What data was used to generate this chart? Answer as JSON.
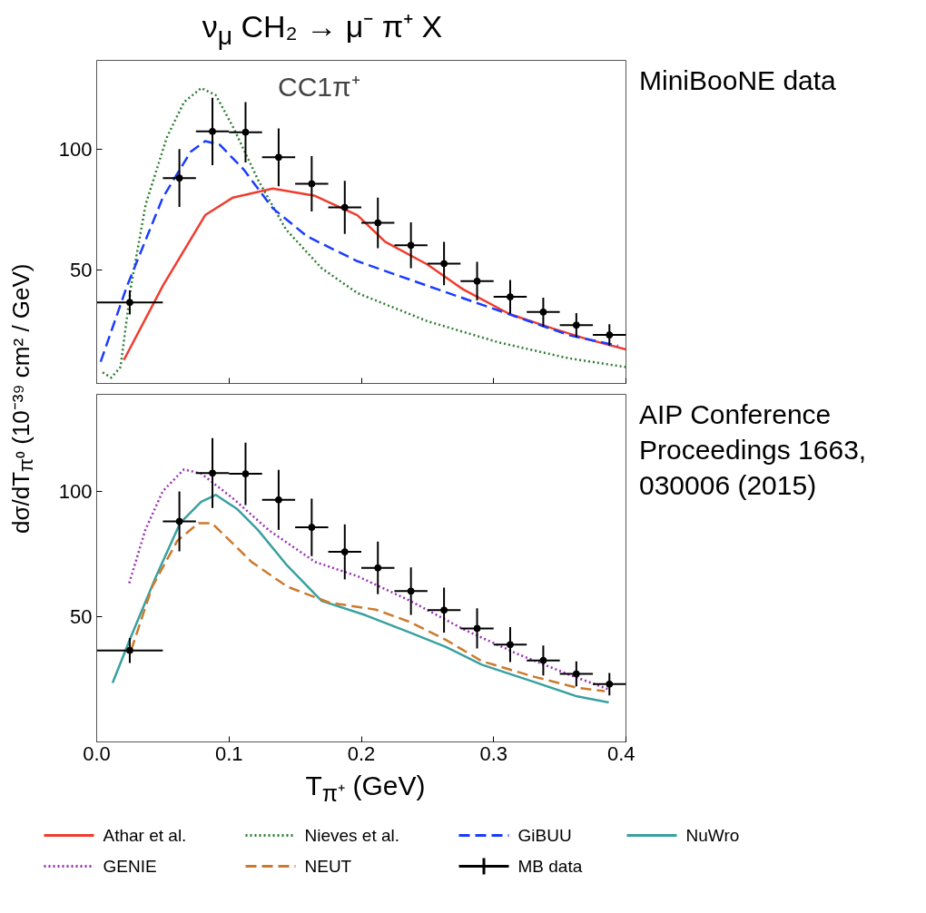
{
  "chart_data": [
    {
      "type": "line",
      "title": "ν$_{μ}$ CH₂ → μ⁻ π⁺ X",
      "subtitle": "CC1π⁺",
      "ylabel": "dσ/dT$_{π⁰}$ (10⁻³⁹ cm² / GeV)",
      "annotations": [
        "MiniBooNE data"
      ],
      "xlim": [
        0,
        0.4
      ],
      "xticks": [
        0.0,
        0.1,
        0.2,
        0.3,
        0.4
      ],
      "ylim": [
        3,
        137
      ],
      "yticks": [
        50,
        100
      ],
      "tick_labels": "y",
      "grid": false,
      "legend": "bottom",
      "series": [
        {
          "name": "Athar et al.",
          "color": "#f03c2e",
          "line_style": "solid",
          "x": [
            0.0205,
            0.05,
            0.082,
            0.103,
            0.133,
            0.165,
            0.197,
            0.218,
            0.25,
            0.277,
            0.312,
            0.344,
            0.37,
            0.4
          ],
          "values": [
            12.7,
            43.5,
            72.8,
            80.1,
            83.8,
            80.8,
            72.8,
            61.8,
            52.3,
            42,
            31.8,
            25.9,
            21.5,
            17.1
          ]
        },
        {
          "name": "Nieves et al.",
          "color": "#2e7d32",
          "line_style": "dotted",
          "x": [
            0.0045,
            0.011,
            0.018,
            0.026,
            0.037,
            0.053,
            0.066,
            0.079,
            0.09,
            0.103,
            0.122,
            0.143,
            0.17,
            0.197,
            0.25,
            0.304,
            0.357,
            0.4
          ],
          "values": [
            7.6,
            5.4,
            9.8,
            43.5,
            77.2,
            105,
            119.7,
            125.5,
            122.6,
            109.4,
            87.4,
            66.9,
            50.8,
            40.5,
            28.8,
            20,
            13.4,
            9.8
          ]
        },
        {
          "name": "GiBUU",
          "color": "#1a3cff",
          "line_style": "dashed",
          "x": [
            0.003,
            0.023,
            0.05,
            0.071,
            0.082,
            0.093,
            0.111,
            0.133,
            0.159,
            0.197,
            0.25,
            0.304,
            0.357,
            0.394
          ],
          "values": [
            12,
            43.5,
            80.1,
            99.1,
            103.5,
            102,
            91.8,
            75.7,
            64,
            53.7,
            43.5,
            33.2,
            23,
            18.6
          ]
        },
        {
          "type": "scatter",
          "marker": "circle",
          "color": "#000000",
          "x": [
            0.025,
            0.0625,
            0.0875,
            0.1125,
            0.1375,
            0.1625,
            0.1875,
            0.2125,
            0.2375,
            0.2625,
            0.2875,
            0.3125,
            0.3375,
            0.3625,
            0.3875
          ],
          "values": [
            36.6,
            88.2,
            107.5,
            107.2,
            96.8,
            85.8,
            76.0,
            69.6,
            60.3,
            52.7,
            45.4,
            38.9,
            32.6,
            27.2,
            23.1
          ],
          "errors": [
            5,
            12,
            14,
            12.5,
            12,
            11.5,
            11,
            10.5,
            9.5,
            9,
            8,
            7,
            6,
            5,
            4.5
          ],
          "xerrors": [
            0.025,
            0.0125,
            0.0125,
            0.0125,
            0.0125,
            0.0125,
            0.0125,
            0.0125,
            0.0125,
            0.0125,
            0.0125,
            0.0125,
            0.0125,
            0.0125,
            0.0125
          ]
        }
      ]
    },
    {
      "type": "line",
      "xlabel": "T$_{π⁺}$ (GeV)",
      "annotations": [
        "AIP Conference Proceedings 1663, 030006 (2015)"
      ],
      "xlim": [
        0,
        0.4
      ],
      "xticks": [
        {
          "value": 0,
          "label": "0.0"
        },
        0.1,
        0.2,
        0.3,
        0.4
      ],
      "ylim": [
        0,
        139
      ],
      "yticks": [
        50,
        100
      ],
      "grid": false,
      "legend": "bottom",
      "series": [
        {
          "name": "NuWro",
          "color": "#3aa0a0",
          "line_style": "solid",
          "x": [
            0.012,
            0.026,
            0.045,
            0.063,
            0.079,
            0.09,
            0.106,
            0.122,
            0.144,
            0.17,
            0.203,
            0.237,
            0.264,
            0.291,
            0.331,
            0.363,
            0.387
          ],
          "values": [
            23.6,
            42.2,
            66.3,
            87.5,
            96,
            98.8,
            93.2,
            84.7,
            70.5,
            56.4,
            50.7,
            43.7,
            38,
            30.9,
            23.9,
            18.2,
            15.8
          ]
        },
        {
          "name": "GENIE",
          "color": "#9a2fb5",
          "line_style": "dotted",
          "x": [
            0.0246,
            0.0367,
            0.05,
            0.066,
            0.079,
            0.103,
            0.13,
            0.165,
            0.197,
            0.237,
            0.277,
            0.318,
            0.358,
            0.387
          ],
          "values": [
            63.5,
            84.7,
            100.3,
            109,
            107.3,
            97.4,
            84.7,
            72,
            66.3,
            56.4,
            45.1,
            35.2,
            26.7,
            21.0
          ]
        },
        {
          "name": "NEUT",
          "color": "#cc7a2e",
          "line_style": "dashed",
          "x": [
            0.026,
            0.042,
            0.061,
            0.077,
            0.087,
            0.098,
            0.117,
            0.144,
            0.176,
            0.211,
            0.237,
            0.264,
            0.291,
            0.331,
            0.363,
            0.384
          ],
          "values": [
            36.6,
            62.1,
            80.5,
            87.5,
            87.5,
            81.9,
            72,
            62.1,
            55.7,
            52.9,
            47.9,
            40.8,
            32.3,
            26,
            21.7,
            20.3
          ]
        },
        {
          "name": "MB data",
          "type": "scatter",
          "marker": "circle",
          "color": "#000000",
          "x": [
            0.025,
            0.0625,
            0.0875,
            0.1125,
            0.1375,
            0.1625,
            0.1875,
            0.2125,
            0.2375,
            0.2625,
            0.2875,
            0.3125,
            0.3375,
            0.3625,
            0.3875
          ],
          "values": [
            36.6,
            88.2,
            107.5,
            107.2,
            96.8,
            85.8,
            76.0,
            69.6,
            60.3,
            52.7,
            45.4,
            38.9,
            32.6,
            27.2,
            23.1
          ],
          "errors": [
            5,
            12,
            14,
            12.5,
            12,
            11.5,
            11,
            10.5,
            9.5,
            9,
            8,
            7,
            6,
            5,
            4.5
          ],
          "xerrors": [
            0.025,
            0.0125,
            0.0125,
            0.0125,
            0.0125,
            0.0125,
            0.0125,
            0.0125,
            0.0125,
            0.0125,
            0.0125,
            0.0125,
            0.0125,
            0.0125,
            0.0125
          ]
        }
      ]
    }
  ]
}
